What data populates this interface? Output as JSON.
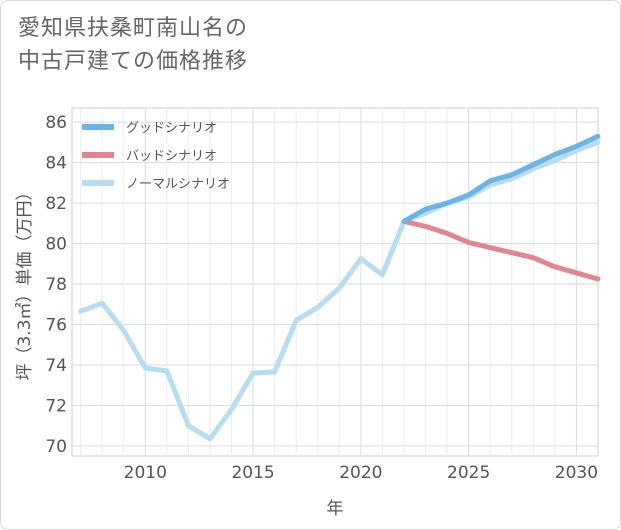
{
  "title": "愛知県扶桑町南山名の\n中古戸建ての価格推移",
  "chart_data": {
    "type": "line",
    "title": "愛知県扶桑町南山名の中古戸建ての価格推移",
    "xlabel": "年",
    "ylabel": "坪（3.3㎡）単価（万円）",
    "xlim": [
      2006.6,
      2031
    ],
    "ylim": [
      69.5,
      86.7
    ],
    "xticks": [
      2010,
      2015,
      2020,
      2025,
      2030
    ],
    "yticks": [
      70,
      72,
      74,
      76,
      78,
      80,
      82,
      84,
      86
    ],
    "grid": true,
    "legend_position": "top-left",
    "series": [
      {
        "name": "グッドシナリオ",
        "color": "#6cb4e8",
        "x": [
          2022,
          2023,
          2024,
          2025,
          2026,
          2027,
          2028,
          2029,
          2030,
          2031
        ],
        "y": [
          81.1,
          81.7,
          82.0,
          82.4,
          83.1,
          83.4,
          83.9,
          84.4,
          84.8,
          85.3
        ]
      },
      {
        "name": "バッドシナリオ",
        "color": "#e0868e",
        "x": [
          2022,
          2023,
          2024,
          2025,
          2026,
          2027,
          2028,
          2029,
          2030,
          2031
        ],
        "y": [
          81.1,
          80.85,
          80.5,
          80.05,
          79.8,
          79.55,
          79.3,
          78.85,
          78.55,
          78.25
        ]
      },
      {
        "name": "ノーマルシナリオ",
        "color": "#b8dcf0",
        "x": [
          2007,
          2008,
          2009,
          2010,
          2011,
          2012,
          2013,
          2014,
          2015,
          2016,
          2017,
          2018,
          2019,
          2020,
          2021,
          2022,
          2023,
          2024,
          2025,
          2026,
          2027,
          2028,
          2029,
          2030,
          2031
        ],
        "y": [
          76.65,
          77.05,
          75.7,
          73.85,
          73.7,
          71.0,
          70.35,
          71.8,
          73.6,
          73.65,
          76.2,
          76.85,
          77.8,
          79.25,
          78.45,
          81.1,
          81.5,
          82.0,
          82.3,
          82.9,
          83.2,
          83.7,
          84.1,
          84.6,
          85.0
        ]
      }
    ]
  }
}
